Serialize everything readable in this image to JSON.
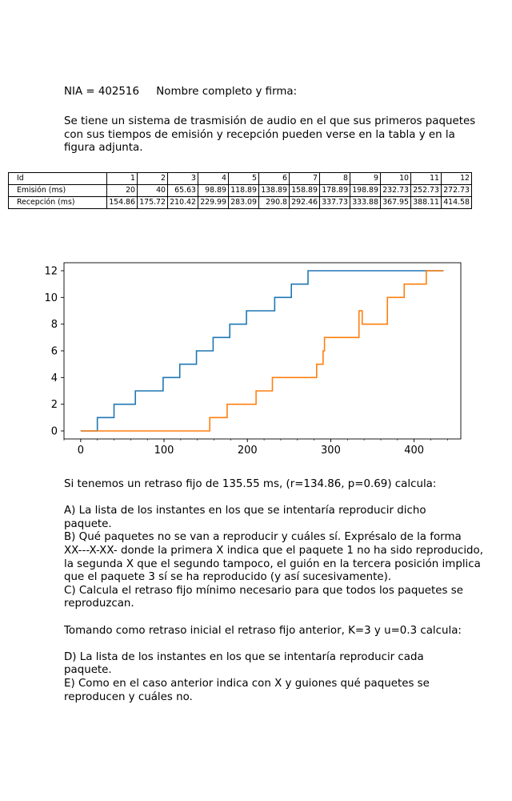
{
  "header": {
    "nia": "NIA = 402516",
    "name_sign": "Nombre completo y firma:"
  },
  "intro": "Se tiene un sistema de trasmisión de audio en el que sus primeros paquetes\ncon sus tiempos de emisión y recepción pueden verse en la tabla y en la\nfigura adjunta.",
  "table": {
    "row_labels": [
      "Id",
      "Emisión (ms)",
      "Recepción (ms)"
    ],
    "ids": [
      "1",
      "2",
      "3",
      "4",
      "5",
      "6",
      "7",
      "8",
      "9",
      "10",
      "11",
      "12"
    ],
    "emision": [
      "20",
      "40",
      "65.63",
      "98.89",
      "118.89",
      "138.89",
      "158.89",
      "178.89",
      "198.89",
      "232.73",
      "252.73",
      "272.73"
    ],
    "recepcion": [
      "154.86",
      "175.72",
      "210.42",
      "229.99",
      "283.09",
      "290.8",
      "292.46",
      "337.73",
      "333.88",
      "367.95",
      "388.11",
      "414.58"
    ]
  },
  "chart_data": {
    "type": "line",
    "xlim": [
      -20,
      456
    ],
    "ylim": [
      -0.6,
      12.6
    ],
    "xticks": [
      0,
      100,
      200,
      300,
      400
    ],
    "yticks": [
      0,
      2,
      4,
      6,
      8,
      10,
      12
    ],
    "grid": false,
    "colors": {
      "emision": "#1f77b4",
      "recepcion": "#ff7f0e"
    },
    "series": [
      {
        "key": "emision",
        "x": [
          0,
          20,
          40,
          65.63,
          98.89,
          118.89,
          138.89,
          158.89,
          178.89,
          198.89,
          232.73,
          252.73,
          272.73,
          435.3
        ],
        "y": [
          0,
          1,
          2,
          3,
          4,
          5,
          6,
          7,
          8,
          9,
          10,
          11,
          12,
          12
        ]
      },
      {
        "key": "recepcion",
        "x": [
          0,
          154.86,
          175.72,
          210.42,
          229.99,
          283.09,
          290.8,
          292.46,
          333.88,
          337.73,
          367.95,
          388.11,
          414.58,
          435.3
        ],
        "y": [
          0,
          1,
          2,
          3,
          4,
          5,
          6,
          7,
          9,
          8,
          10,
          11,
          12,
          12
        ]
      }
    ]
  },
  "questions": "Si tenemos un retraso fijo de 135.55 ms, (r=134.86, p=0.69) calcula:\n\nA) La lista de los instantes en los que se intentaría reproducir dicho\npaquete.\nB) Qué paquetes no se van a reproducir y cuáles sí. Exprésalo de la forma\nXX---X-XX- donde la primera X indica que el paquete 1 no ha sido reproducido,\nla segunda X que el segundo tampoco, el guión en la tercera posición implica\nque el paquete 3 sí se ha reproducido (y así sucesivamente).\nC) Calcula el retraso fijo mínimo necesario para que todos los paquetes se\nreproduzcan.\n\nTomando como retraso inicial el retraso fijo anterior, K=3 y u=0.3 calcula:\n\nD) La lista de los instantes en los que se intentaría reproducir cada\npaquete.\nE) Como en el caso anterior indica con X y guiones qué paquetes se\nreproducen y cuáles no."
}
